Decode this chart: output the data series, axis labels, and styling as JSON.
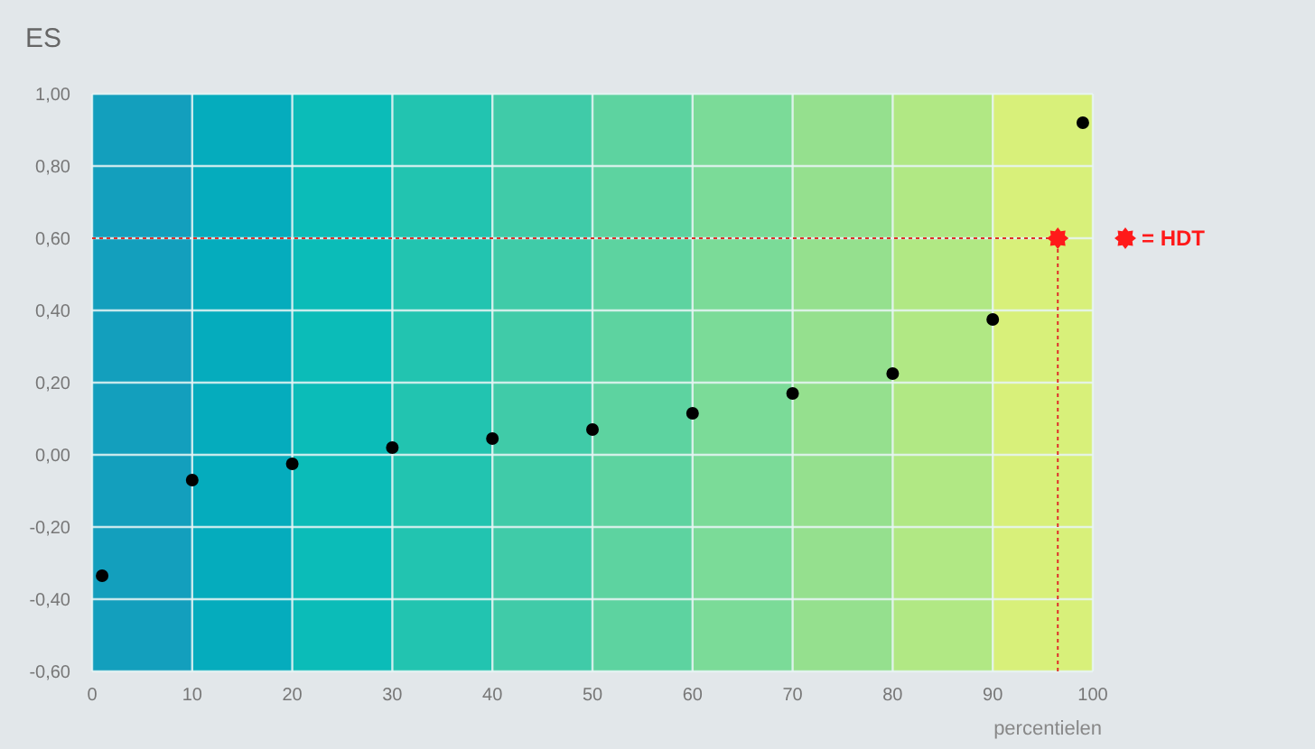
{
  "chart_data": {
    "type": "scatter",
    "ylabel": "ES",
    "xlabel": "percentielen",
    "xlim": [
      0,
      100
    ],
    "xticks": [
      0,
      10,
      20,
      30,
      40,
      50,
      60,
      70,
      80,
      90,
      100
    ],
    "ylim": [
      -0.6,
      1.0
    ],
    "yticks": [
      {
        "value": -0.6,
        "label": "-0,60"
      },
      {
        "value": -0.4,
        "label": "-0,40"
      },
      {
        "value": -0.2,
        "label": "-0,20"
      },
      {
        "value": 0,
        "label": "0,00"
      },
      {
        "value": 0.2,
        "label": "0,20"
      },
      {
        "value": 0.4,
        "label": "0,40"
      },
      {
        "value": 0.6,
        "label": "0,60"
      },
      {
        "value": 0.8,
        "label": "0,80"
      },
      {
        "value": 1.0,
        "label": "1,00"
      }
    ],
    "grid": true,
    "legend": "right",
    "series": [
      {
        "color": "#000000",
        "marker": "circle",
        "x": [
          1,
          10,
          20,
          30,
          40,
          50,
          60,
          70,
          80,
          90,
          99
        ],
        "values": [
          -0.335,
          -0.07,
          -0.025,
          0.02,
          0.045,
          0.07,
          0.115,
          0.17,
          0.225,
          0.375,
          0.92
        ]
      },
      {
        "name": "= HDT",
        "color": "#ff1a1a",
        "marker": "star",
        "x": [
          96.5
        ],
        "values": [
          0.6
        ]
      }
    ],
    "ref_lines": [
      {
        "axis": "y",
        "value": 0.6,
        "color": "#e0302a",
        "line_style": "dotted"
      },
      {
        "axis": "x",
        "value": 96.5,
        "color": "#e0302a",
        "line_style": "dotted"
      }
    ],
    "bands": [
      {
        "axis": "x",
        "from": 0,
        "to": 10,
        "color": "#139fbd"
      },
      {
        "axis": "x",
        "from": 10,
        "to": 20,
        "color": "#05acbd"
      },
      {
        "axis": "x",
        "from": 20,
        "to": 30,
        "color": "#0bbcb8"
      },
      {
        "axis": "x",
        "from": 30,
        "to": 40,
        "color": "#22c4b0"
      },
      {
        "axis": "x",
        "from": 40,
        "to": 50,
        "color": "#40cba8"
      },
      {
        "axis": "x",
        "from": 50,
        "to": 60,
        "color": "#5dd3a0"
      },
      {
        "axis": "x",
        "from": 60,
        "to": 70,
        "color": "#7bdb98"
      },
      {
        "axis": "x",
        "from": 70,
        "to": 80,
        "color": "#95e08e"
      },
      {
        "axis": "x",
        "from": 80,
        "to": 90,
        "color": "#b1e884"
      },
      {
        "axis": "x",
        "from": 90,
        "to": 100,
        "color": "#d8f07a"
      }
    ]
  }
}
